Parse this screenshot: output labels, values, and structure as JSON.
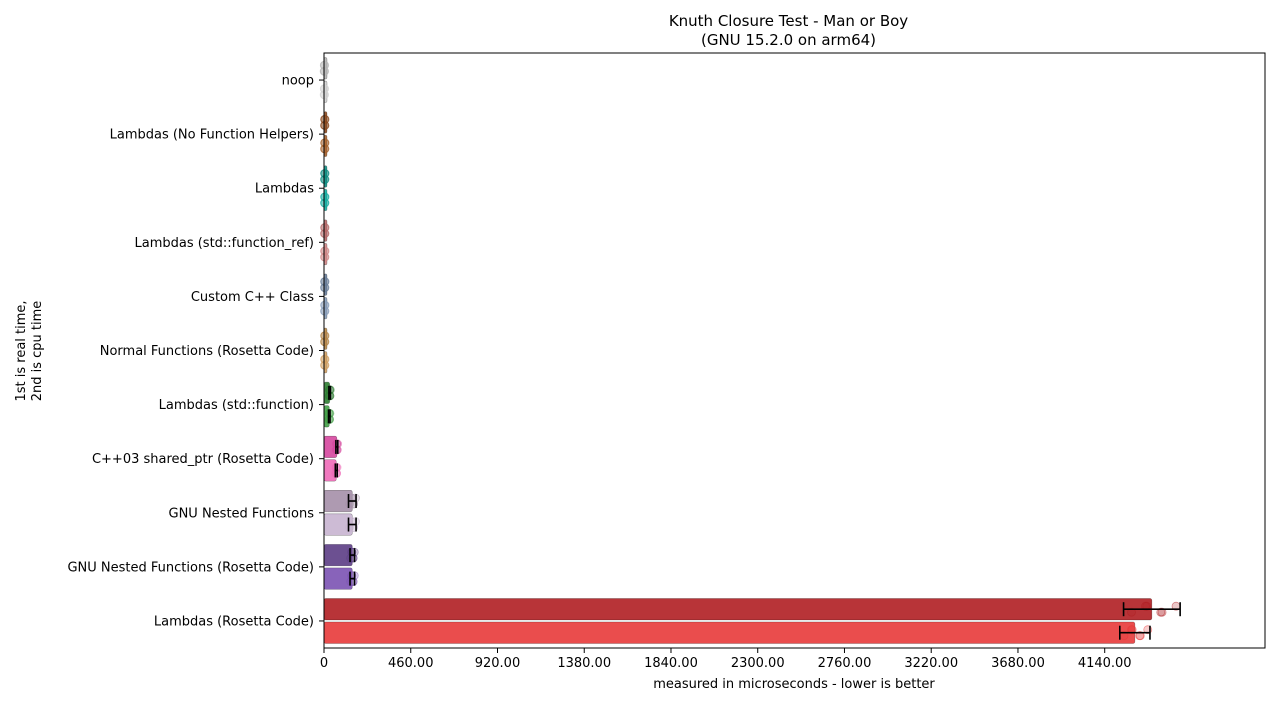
{
  "chart_data": {
    "type": "bar",
    "orientation": "horizontal",
    "title_line1": "Knuth Closure Test - Man or Boy",
    "title_line2": "(GNU 15.2.0 on arm64)",
    "xlabel": "measured in microseconds - lower is better",
    "ylabel_line1": "1st is real time,",
    "ylabel_line2": "2nd is cpu time",
    "xlim": [
      0,
      4990
    ],
    "xticks": [
      0,
      460,
      920,
      1380,
      1840,
      2300,
      2760,
      3220,
      3680,
      4140
    ],
    "xtick_labels": [
      "0",
      "460.00",
      "920.00",
      "1380.00",
      "1840.00",
      "2300.00",
      "2760.00",
      "3220.00",
      "3680.00",
      "4140.00"
    ],
    "grid": false,
    "series": [
      {
        "name": "real time"
      },
      {
        "name": "cpu time"
      }
    ],
    "categories": [
      {
        "label": "noop",
        "real": 2,
        "cpu": 2,
        "real_err": 0,
        "cpu_err": 0,
        "color_real": "#b8b8b8",
        "color_cpu": "#d4d4d4"
      },
      {
        "label": "Lambdas (No Function Helpers)",
        "real": 4,
        "cpu": 4,
        "real_err": 0,
        "cpu_err": 0,
        "color_real": "#8c4a1f",
        "color_cpu": "#a8632e"
      },
      {
        "label": "Lambdas",
        "real": 4,
        "cpu": 4,
        "real_err": 0,
        "cpu_err": 0,
        "color_real": "#0f8f85",
        "color_cpu": "#16b0a4"
      },
      {
        "label": "Lambdas (std::function_ref)",
        "real": 4,
        "cpu": 4,
        "real_err": 0,
        "cpu_err": 0,
        "color_real": "#b86a6a",
        "color_cpu": "#d48a8a"
      },
      {
        "label": "Custom C++ Class",
        "real": 4,
        "cpu": 4,
        "real_err": 0,
        "cpu_err": 0,
        "color_real": "#6a7f9c",
        "color_cpu": "#8aa0bd"
      },
      {
        "label": "Normal Functions (Rosetta Code)",
        "real": 4,
        "cpu": 4,
        "real_err": 0,
        "cpu_err": 0,
        "color_real": "#b8894a",
        "color_cpu": "#d4a265"
      },
      {
        "label": "Lambdas (std::function)",
        "real": 30,
        "cpu": 28,
        "real_err": 4,
        "cpu_err": 4,
        "color_real": "#2e7d32",
        "color_cpu": "#43a047"
      },
      {
        "label": "C++03 shared_ptr (Rosetta Code)",
        "real": 68,
        "cpu": 65,
        "real_err": 5,
        "cpu_err": 5,
        "color_real": "#d6479e",
        "color_cpu": "#f06ab8"
      },
      {
        "label": "GNU Nested Functions",
        "real": 150,
        "cpu": 150,
        "real_err": 20,
        "cpu_err": 20,
        "color_real": "#a58fa8",
        "color_cpu": "#c8b4d0"
      },
      {
        "label": "GNU Nested Functions (Rosetta Code)",
        "real": 150,
        "cpu": 150,
        "real_err": 12,
        "cpu_err": 12,
        "color_real": "#5c3d85",
        "color_cpu": "#7b52b3"
      },
      {
        "label": "Lambdas (Rosetta Code)",
        "real": 4390,
        "cpu": 4300,
        "real_err": 150,
        "cpu_err": 80,
        "color_real": "#b01e22",
        "color_cpu": "#e83a3a"
      }
    ]
  }
}
